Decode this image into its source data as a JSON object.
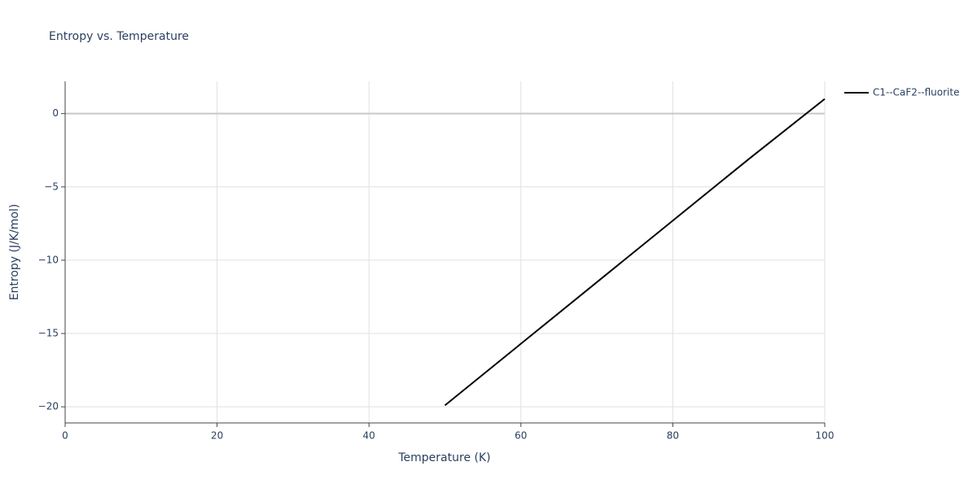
{
  "chart_data": {
    "type": "line",
    "title": "Entropy vs. Temperature",
    "x_label": "Temperature (K)",
    "y_label": "Entropy (J/K/mol)",
    "x": [
      50,
      60,
      70,
      80,
      90,
      100
    ],
    "series": [
      {
        "name": "C1--CaF2--fluorite",
        "color": "#000000",
        "values": [
          -19.9,
          -15.7,
          -11.5,
          -7.3,
          -3.1,
          1.0
        ]
      }
    ],
    "xlim": [
      0,
      100
    ],
    "xticks": [
      0,
      20,
      40,
      60,
      80,
      100
    ],
    "ylim": [
      -21.1,
      2.2
    ],
    "yticks": [
      {
        "value": -20,
        "label": "−20"
      },
      {
        "value": -15,
        "label": "−15"
      },
      {
        "value": -10,
        "label": "−10"
      },
      {
        "value": -5,
        "label": "−5"
      },
      0
    ],
    "grid": true,
    "legend": "right"
  }
}
